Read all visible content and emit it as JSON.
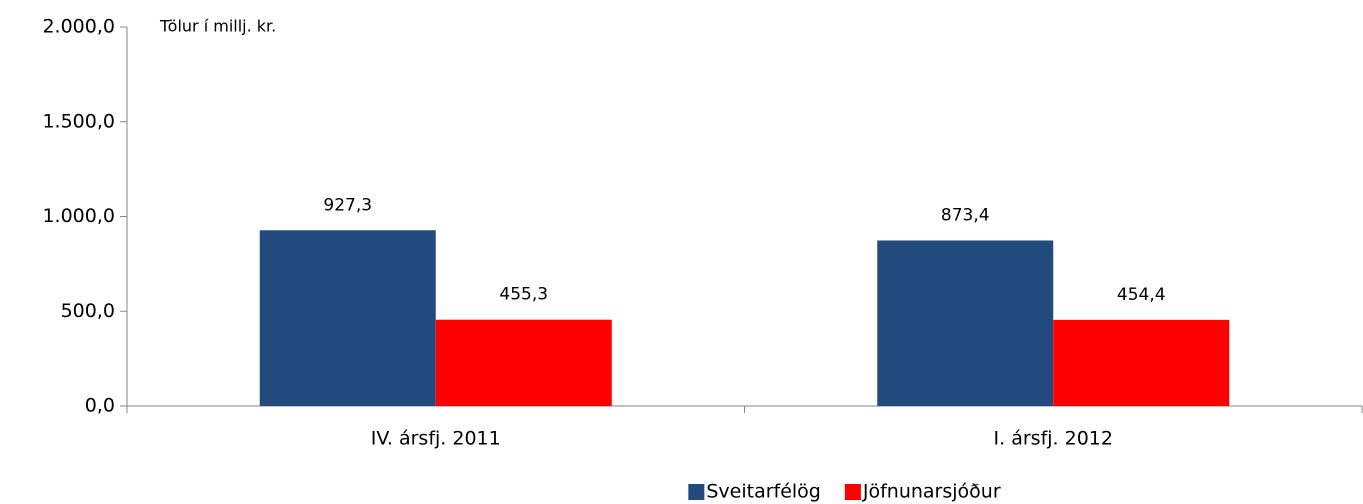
{
  "chart_data": {
    "type": "bar",
    "annotation": "Tölur í millj. kr.",
    "categories": [
      "IV. ársfj. 2011",
      "I. ársfj. 2012"
    ],
    "series": [
      {
        "name": "Sveitarfélög",
        "color": "#234a7d",
        "values": [
          927.3,
          873.4
        ],
        "value_labels": [
          "927,3",
          "873,4"
        ]
      },
      {
        "name": "Jöfnunarsjóður",
        "color": "#ff0000",
        "values": [
          455.3,
          454.4
        ],
        "value_labels": [
          "455,3",
          "454,4"
        ]
      }
    ],
    "ylim": [
      0,
      2000
    ],
    "yticks": [
      {
        "value": 0,
        "label": "0,0"
      },
      {
        "value": 500,
        "label": "500,0"
      },
      {
        "value": 1000,
        "label": "1.000,0"
      },
      {
        "value": 1500,
        "label": "1.500,0"
      },
      {
        "value": 2000,
        "label": "2.000,0"
      }
    ],
    "grid": false,
    "legend": "bottom"
  }
}
